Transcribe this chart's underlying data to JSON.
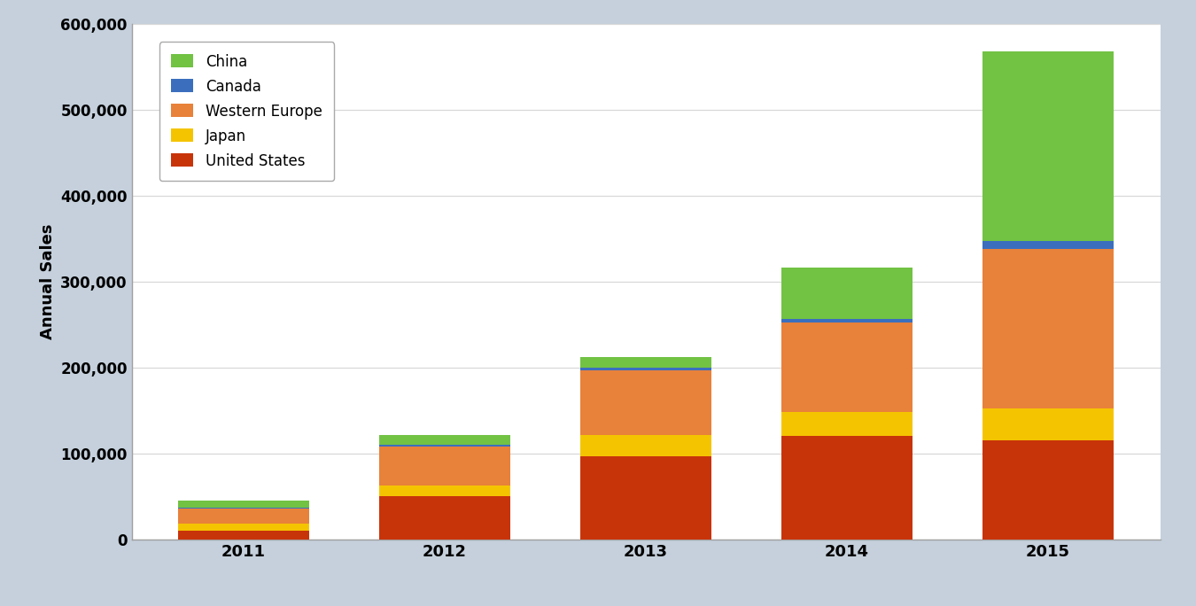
{
  "years": [
    "2011",
    "2012",
    "2013",
    "2014",
    "2015"
  ],
  "series": {
    "United States": [
      10000,
      50000,
      97000,
      120000,
      115000
    ],
    "Japan": [
      8000,
      13000,
      25000,
      28000,
      38000
    ],
    "Western Europe": [
      18000,
      45000,
      75000,
      105000,
      185000
    ],
    "Canada": [
      1000,
      2000,
      3000,
      4000,
      10000
    ],
    "China": [
      8000,
      12000,
      12000,
      60000,
      220000
    ]
  },
  "colors": {
    "United States": "#C8340A",
    "Japan": "#F5C400",
    "Western Europe": "#E8813A",
    "Canada": "#3B6FBE",
    "China": "#72C244"
  },
  "legend_order": [
    "China",
    "Canada",
    "Western Europe",
    "Japan",
    "United States"
  ],
  "ylabel": "Annual Sales",
  "ylim": [
    0,
    600000
  ],
  "yticks": [
    0,
    100000,
    200000,
    300000,
    400000,
    500000,
    600000
  ],
  "ytick_labels": [
    "0",
    "100,000",
    "200,000",
    "300,000",
    "400,000",
    "500,000",
    "600,000"
  ],
  "background_color": "#C5D0DC",
  "plot_bg_color": "#FFFFFF",
  "bar_width": 0.65,
  "axis_label_fontsize": 13,
  "tick_fontsize": 12,
  "legend_fontsize": 12,
  "grid_color": "#D8D8D8",
  "spine_color": "#A0A0A0"
}
